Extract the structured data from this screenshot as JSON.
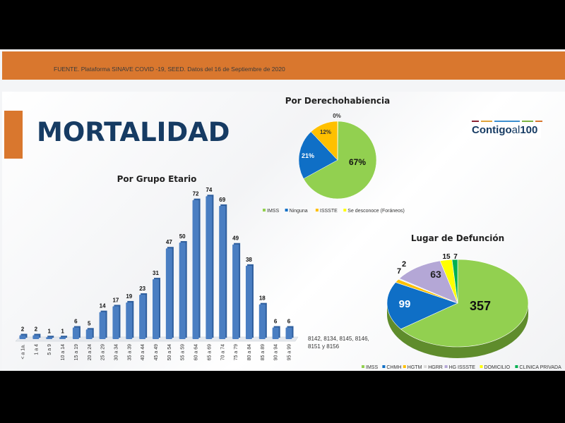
{
  "header": {
    "source": "FUENTE. Plataforma SINAVE COVID -19, SEED. Datos del 16 de Septiembre de 2020",
    "title": "MORTALIDAD"
  },
  "logo": {
    "text_main": "Contigo",
    "text_al": "al",
    "text_num": "100"
  },
  "note": "8142, 8134, 8145, 8146, 8151 y 8156",
  "colors": {
    "orange": "#d9772e",
    "navy": "#163b63",
    "bar": "#4a7ec2"
  },
  "chart_data": [
    {
      "type": "bar",
      "title": "Por Grupo Etario",
      "categories": [
        "< a 1a.",
        "1 a 4",
        "5 a 9",
        "10 a 14",
        "15 a 19",
        "20 a 24",
        "25 a 29",
        "30 a 34",
        "35 a 39",
        "40 a 44",
        "45 a 49",
        "50 a 54",
        "55 a 59",
        "60 a 64",
        "65 a 69",
        "70 a 74",
        "75 a 79",
        "80 a 84",
        "85 a 89",
        "90 a 94",
        "95 a 99"
      ],
      "values": [
        2,
        2,
        1,
        1,
        6,
        5,
        14,
        17,
        19,
        23,
        31,
        47,
        50,
        72,
        74,
        69,
        49,
        38,
        18,
        6,
        6
      ],
      "ylim": [
        0,
        80
      ],
      "grid": false
    },
    {
      "type": "pie",
      "title": "Por Derechohabiencia",
      "labels": [
        "IMSS",
        "Ninguna",
        "ISSSTE",
        "Se desconoce (Foráneos)"
      ],
      "values": [
        67,
        21,
        12,
        0
      ],
      "value_labels": [
        "67%",
        "21%",
        "12%",
        "0%"
      ],
      "colors": [
        "#92d050",
        "#0f6fc6",
        "#ffc000",
        "#ffff00"
      ],
      "legend": "bottom"
    },
    {
      "type": "pie",
      "title": "Lugar de Defunción",
      "labels": [
        "IMSS",
        "CHMH",
        "HGTM",
        "HGRR",
        "HG ISSSTE",
        "DOMICILIO",
        "CLINICA PRIVADA"
      ],
      "values": [
        357,
        99,
        7,
        2,
        63,
        15,
        7
      ],
      "colors": [
        "#92d050",
        "#0f6fc6",
        "#ffc000",
        "#e8e8e8",
        "#b4a7d6",
        "#ffff00",
        "#00b050"
      ],
      "legend": "bottom",
      "style": "3d"
    }
  ]
}
